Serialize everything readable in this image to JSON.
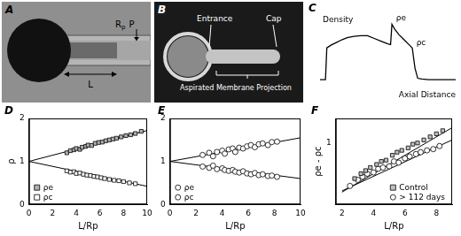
{
  "chart_data": [
    {
      "type": "line",
      "title": "C",
      "x_label": "Axial Distance",
      "annotations": [
        "Density",
        "ρe",
        "ρc"
      ],
      "x": [
        0,
        4,
        5,
        8,
        12,
        16,
        20,
        25,
        30,
        35,
        40,
        45,
        50,
        52,
        53,
        55,
        58,
        62,
        66,
        68,
        70,
        72,
        75,
        80,
        90,
        100
      ],
      "values": [
        0.13,
        0.13,
        0.6,
        0.64,
        0.68,
        0.72,
        0.75,
        0.77,
        0.78,
        0.78,
        0.74,
        0.7,
        0.66,
        0.65,
        0.95,
        0.88,
        0.8,
        0.72,
        0.64,
        0.6,
        0.3,
        0.15,
        0.14,
        0.13,
        0.13,
        0.13
      ],
      "xlim": [
        0,
        100
      ],
      "ylim": [
        0,
        1.1
      ],
      "tick_labels": false,
      "grid": false,
      "color": "#000000"
    },
    {
      "type": "scatter",
      "title": "D",
      "x_label": "L/Rp",
      "y_label": "ρ",
      "xlim": [
        0,
        10
      ],
      "xticks": [
        0,
        2,
        4,
        6,
        8,
        10
      ],
      "ylim": [
        0,
        2
      ],
      "yticks": [
        0,
        1,
        2
      ],
      "grid": false,
      "legend": "lower left",
      "series": [
        {
          "name": "ρe",
          "color": "#b0b0b0",
          "marker": "square",
          "x": [
            3.2,
            3.5,
            3.8,
            4.0,
            4.3,
            4.5,
            4.8,
            5.0,
            5.3,
            5.6,
            5.9,
            6.2,
            6.5,
            6.8,
            7.1,
            7.4,
            7.8,
            8.2,
            8.6,
            9.0,
            9.5
          ],
          "values": [
            1.2,
            1.25,
            1.27,
            1.3,
            1.28,
            1.33,
            1.35,
            1.38,
            1.37,
            1.42,
            1.44,
            1.45,
            1.48,
            1.5,
            1.52,
            1.54,
            1.57,
            1.6,
            1.62,
            1.65,
            1.7
          ],
          "fit": {
            "x": [
              0,
              10
            ],
            "values": [
              1,
              1.72
            ]
          }
        },
        {
          "name": "ρc",
          "color": "#ffffff",
          "marker": "square",
          "x": [
            3.2,
            3.5,
            3.8,
            4.0,
            4.3,
            4.6,
            4.9,
            5.2,
            5.5,
            5.8,
            6.1,
            6.4,
            6.8,
            7.2,
            7.6,
            8.0,
            8.5,
            9.0
          ],
          "values": [
            0.78,
            0.75,
            0.76,
            0.72,
            0.73,
            0.7,
            0.68,
            0.67,
            0.65,
            0.64,
            0.62,
            0.6,
            0.58,
            0.56,
            0.55,
            0.53,
            0.5,
            0.48
          ],
          "fit": {
            "x": [
              0,
              10
            ],
            "values": [
              1,
              0.42
            ]
          }
        }
      ]
    },
    {
      "type": "scatter",
      "title": "E",
      "x_label": "L/Rp",
      "xlim": [
        0,
        10
      ],
      "xticks": [
        0,
        2,
        4,
        6,
        8,
        10
      ],
      "ylim": [
        0,
        2
      ],
      "yticks": [
        0,
        1,
        2
      ],
      "grid": false,
      "legend": "lower left",
      "series": [
        {
          "name": "ρe",
          "color": "#ffffff",
          "marker": "circle",
          "x": [
            2.5,
            3.0,
            3.3,
            3.6,
            4.0,
            4.2,
            4.5,
            4.8,
            5.0,
            5.3,
            5.6,
            5.9,
            6.2,
            6.5,
            6.8,
            7.1,
            7.5,
            7.8,
            8.2
          ],
          "values": [
            1.15,
            1.2,
            1.12,
            1.22,
            1.25,
            1.18,
            1.28,
            1.3,
            1.22,
            1.32,
            1.3,
            1.35,
            1.38,
            1.33,
            1.4,
            1.42,
            1.38,
            1.45,
            1.46
          ],
          "fit": {
            "x": [
              0,
              10
            ],
            "values": [
              1,
              1.55
            ]
          }
        },
        {
          "name": "ρc",
          "color": "#ffffff",
          "marker": "circle",
          "x": [
            2.5,
            3.0,
            3.3,
            3.6,
            4.0,
            4.2,
            4.5,
            4.8,
            5.0,
            5.3,
            5.6,
            5.9,
            6.2,
            6.5,
            6.8,
            7.1,
            7.5,
            7.8,
            8.2
          ],
          "values": [
            0.88,
            0.85,
            0.9,
            0.82,
            0.84,
            0.8,
            0.78,
            0.8,
            0.76,
            0.74,
            0.77,
            0.72,
            0.7,
            0.73,
            0.68,
            0.7,
            0.66,
            0.67,
            0.64
          ],
          "fit": {
            "x": [
              0,
              10
            ],
            "values": [
              1,
              0.6
            ]
          }
        }
      ]
    },
    {
      "type": "scatter",
      "title": "F",
      "x_label": "L/Rp",
      "y_label": "ρe - ρc",
      "xlim": [
        1.6,
        9
      ],
      "xticks": [
        2,
        4,
        6,
        8
      ],
      "ylim": [
        0,
        1.4
      ],
      "yticks": [
        1
      ],
      "grid": false,
      "legend": "lower right",
      "series": [
        {
          "name": "Control",
          "color": "#c0c0c0",
          "marker": "square",
          "x": [
            2.8,
            3.2,
            3.5,
            3.8,
            4.2,
            4.5,
            4.8,
            5.2,
            5.5,
            5.8,
            6.2,
            6.5,
            6.8,
            7.2,
            7.6,
            8.0,
            8.4
          ],
          "values": [
            0.42,
            0.5,
            0.55,
            0.6,
            0.65,
            0.7,
            0.72,
            0.8,
            0.85,
            0.88,
            0.92,
            0.98,
            1.0,
            1.05,
            1.1,
            1.15,
            1.2
          ],
          "fit": {
            "x": [
              2,
              9
            ],
            "values": [
              0.2,
              1.25
            ]
          }
        },
        {
          "name": "> 112 days",
          "color": "#ffffff",
          "marker": "circle",
          "x": [
            2.5,
            3.0,
            3.3,
            3.6,
            4.0,
            4.3,
            4.6,
            5.0,
            5.3,
            5.6,
            6.0,
            6.3,
            6.7,
            7.0,
            7.4,
            7.8,
            8.2
          ],
          "values": [
            0.3,
            0.4,
            0.45,
            0.5,
            0.52,
            0.58,
            0.6,
            0.62,
            0.7,
            0.68,
            0.75,
            0.78,
            0.82,
            0.85,
            0.88,
            0.9,
            0.95
          ],
          "fit": {
            "x": [
              2,
              9
            ],
            "values": [
              0.22,
              1.05
            ]
          }
        }
      ]
    }
  ],
  "image_a": {
    "letter": "A",
    "radius_label": "R",
    "radius_subscript": "p",
    "pipette_label": "P",
    "length_label": "L"
  },
  "image_b": {
    "letter": "B",
    "entrance": "Entrance",
    "cap": "Cap",
    "projection": "Aspirated Membrane Projection"
  }
}
